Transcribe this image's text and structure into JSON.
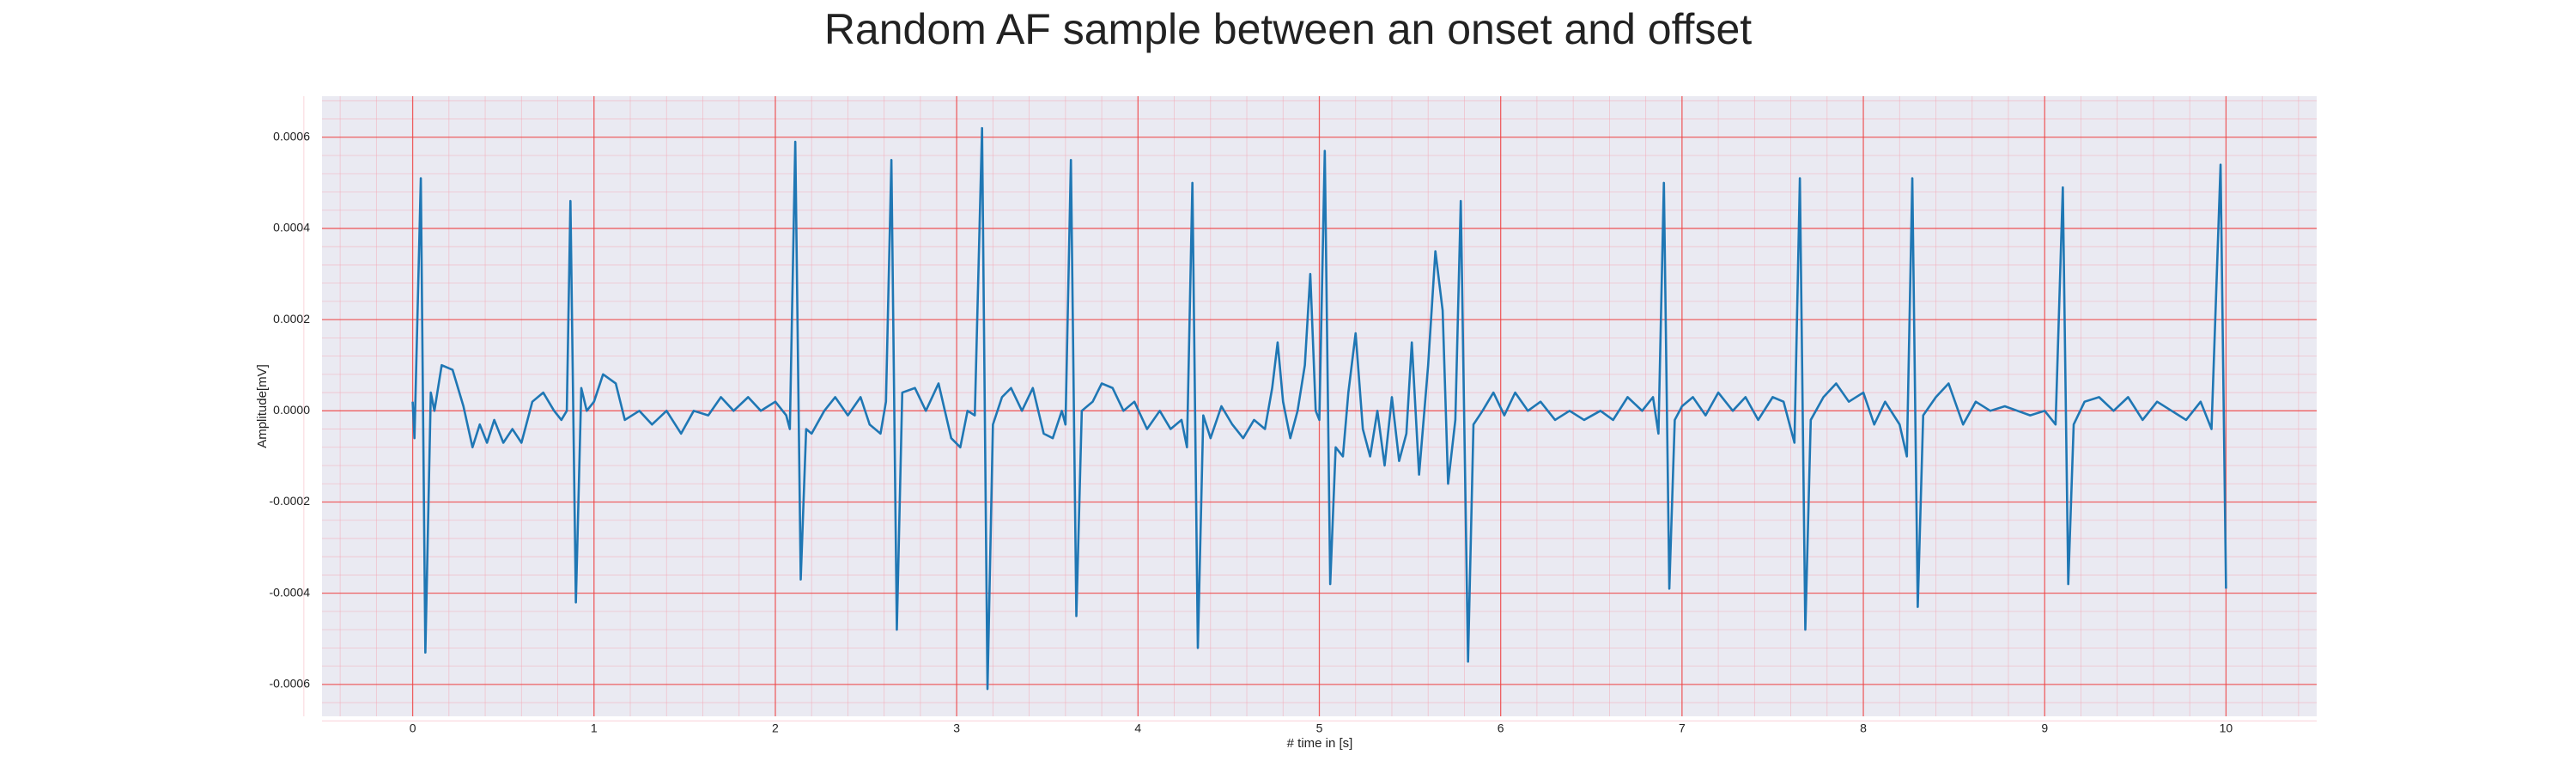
{
  "chart_data": {
    "type": "line",
    "title": "Random AF sample between an onset and offset",
    "xlabel": "# time in [s]",
    "ylabel": "Amplitude[mV]",
    "color": "#1f77b4",
    "grid": true,
    "minor_grid": true,
    "xlim": [
      -0.5,
      10.5
    ],
    "ylim": [
      -0.00067,
      0.00069
    ],
    "xticks": [
      0,
      1,
      2,
      3,
      4,
      5,
      6,
      7,
      8,
      9,
      10
    ],
    "yticks": [
      -0.0006,
      -0.0004,
      -0.0002,
      {
        "value": 0,
        "label": "0.0000"
      },
      0.0002,
      0.0004,
      0.0006
    ],
    "x": [
      0,
      0.01,
      0.045,
      0.07,
      0.1,
      0.12,
      0.16,
      0.22,
      0.28,
      0.33,
      0.37,
      0.41,
      0.45,
      0.5,
      0.55,
      0.6,
      0.66,
      0.72,
      0.78,
      0.82,
      0.85,
      0.87,
      0.9,
      0.93,
      0.96,
      1.0,
      1.05,
      1.12,
      1.17,
      1.25,
      1.32,
      1.4,
      1.48,
      1.55,
      1.63,
      1.7,
      1.77,
      1.85,
      1.92,
      2.0,
      2.06,
      2.08,
      2.11,
      2.14,
      2.17,
      2.2,
      2.27,
      2.33,
      2.4,
      2.47,
      2.52,
      2.58,
      2.61,
      2.64,
      2.67,
      2.7,
      2.77,
      2.83,
      2.9,
      2.97,
      3.02,
      3.06,
      3.1,
      3.14,
      3.17,
      3.2,
      3.25,
      3.3,
      3.36,
      3.42,
      3.48,
      3.53,
      3.58,
      3.6,
      3.63,
      3.66,
      3.69,
      3.75,
      3.8,
      3.86,
      3.92,
      3.98,
      4.05,
      4.12,
      4.18,
      4.24,
      4.27,
      4.3,
      4.33,
      4.36,
      4.4,
      4.46,
      4.52,
      4.58,
      4.64,
      4.7,
      4.74,
      4.77,
      4.8,
      4.84,
      4.88,
      4.92,
      4.95,
      4.98,
      5.0,
      5.03,
      5.06,
      5.09,
      5.13,
      5.16,
      5.2,
      5.24,
      5.28,
      5.32,
      5.36,
      5.4,
      5.44,
      5.48,
      5.51,
      5.55,
      5.6,
      5.64,
      5.68,
      5.71,
      5.75,
      5.78,
      5.82,
      5.85,
      5.9,
      5.96,
      6.02,
      6.08,
      6.15,
      6.22,
      6.3,
      6.38,
      6.46,
      6.55,
      6.62,
      6.7,
      6.78,
      6.84,
      6.87,
      6.9,
      6.93,
      6.96,
      7.0,
      7.06,
      7.13,
      7.2,
      7.28,
      7.35,
      7.42,
      7.5,
      7.56,
      7.62,
      7.65,
      7.68,
      7.71,
      7.78,
      7.85,
      7.92,
      8.0,
      8.06,
      8.12,
      8.2,
      8.24,
      8.27,
      8.3,
      8.33,
      8.4,
      8.47,
      8.55,
      8.62,
      8.7,
      8.78,
      8.85,
      8.92,
      9.0,
      9.06,
      9.1,
      9.13,
      9.16,
      9.22,
      9.3,
      9.38,
      9.46,
      9.54,
      9.62,
      9.7,
      9.78,
      9.86,
      9.92,
      9.97,
      10.0
    ],
    "values": [
      2e-05,
      -6e-05,
      0.00051,
      -0.00053,
      4e-05,
      0.0,
      0.0001,
      9e-05,
      1e-05,
      -8e-05,
      -3e-05,
      -7e-05,
      -2e-05,
      -7e-05,
      -4e-05,
      -7e-05,
      2e-05,
      4e-05,
      0.0,
      -2e-05,
      0.0,
      0.00046,
      -0.00042,
      5e-05,
      0.0,
      2e-05,
      8e-05,
      6e-05,
      -2e-05,
      0.0,
      -3e-05,
      0.0,
      -5e-05,
      0.0,
      -1e-05,
      3e-05,
      0.0,
      3e-05,
      0.0,
      2e-05,
      -1e-05,
      -4e-05,
      0.00059,
      -0.00037,
      -4e-05,
      -5e-05,
      0.0,
      3e-05,
      -1e-05,
      3e-05,
      -3e-05,
      -5e-05,
      2e-05,
      0.00055,
      -0.00048,
      4e-05,
      5e-05,
      0.0,
      6e-05,
      -6e-05,
      -8e-05,
      0.0,
      -1e-05,
      0.00062,
      -0.00061,
      -3e-05,
      3e-05,
      5e-05,
      0.0,
      5e-05,
      -5e-05,
      -6e-05,
      0.0,
      -3e-05,
      0.00055,
      -0.00045,
      0.0,
      2e-05,
      6e-05,
      5e-05,
      0.0,
      2e-05,
      -4e-05,
      0.0,
      -4e-05,
      -2e-05,
      -8e-05,
      0.0005,
      -0.00052,
      -1e-05,
      -6e-05,
      1e-05,
      -3e-05,
      -6e-05,
      -2e-05,
      -4e-05,
      5e-05,
      0.00015,
      2e-05,
      -6e-05,
      0.0,
      0.0001,
      0.0003,
      0.0,
      -2e-05,
      0.00057,
      -0.00038,
      -8e-05,
      -0.0001,
      4e-05,
      0.00017,
      -4e-05,
      -0.0001,
      0.0,
      -0.00012,
      3e-05,
      -0.00011,
      -5e-05,
      0.00015,
      -0.00014,
      0.0001,
      0.00035,
      0.00022,
      -0.00016,
      -2e-05,
      0.00046,
      -0.00055,
      -3e-05,
      0.0,
      4e-05,
      -1e-05,
      4e-05,
      0.0,
      2e-05,
      -2e-05,
      0.0,
      -2e-05,
      0.0,
      -2e-05,
      3e-05,
      0.0,
      3e-05,
      -5e-05,
      0.0005,
      -0.00039,
      -2e-05,
      1e-05,
      3e-05,
      -1e-05,
      4e-05,
      0.0,
      3e-05,
      -2e-05,
      3e-05,
      2e-05,
      -7e-05,
      0.00051,
      -0.00048,
      -2e-05,
      3e-05,
      6e-05,
      2e-05,
      4e-05,
      -3e-05,
      2e-05,
      -3e-05,
      -0.0001,
      0.00051,
      -0.00043,
      -1e-05,
      3e-05,
      6e-05,
      -3e-05,
      2e-05,
      0.0,
      1e-05,
      0.0,
      -1e-05,
      0.0,
      -3e-05,
      0.00049,
      -0.00038,
      -3e-05,
      2e-05,
      3e-05,
      0.0,
      3e-05,
      -2e-05,
      2e-05,
      0.0,
      -2e-05,
      2e-05,
      -4e-05,
      0.00054,
      -0.00039
    ]
  }
}
